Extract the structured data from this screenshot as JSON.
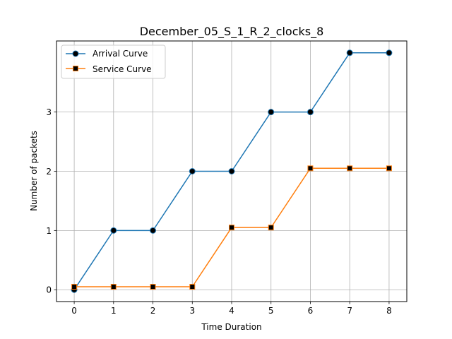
{
  "chart_data": {
    "type": "line",
    "title": "December_05_S_1_R_2_clocks_8",
    "xlabel": "Time Duration",
    "ylabel": "Number of packets",
    "x": [
      0,
      1,
      2,
      3,
      4,
      5,
      6,
      7,
      8
    ],
    "xlim": [
      -0.45,
      8.45
    ],
    "ylim": [
      -0.2,
      4.2
    ],
    "xticks": [
      "0",
      "1",
      "2",
      "3",
      "4",
      "5",
      "6",
      "7",
      "8"
    ],
    "yticks": [
      0,
      1,
      2,
      3
    ],
    "ytick_labels": [
      "0",
      "1",
      "2",
      "3"
    ],
    "grid": true,
    "legend_position": "upper-left",
    "series": [
      {
        "name": "Arrival Curve",
        "color": "#1f77b4",
        "marker": "circle",
        "values": [
          0,
          1,
          1,
          2,
          2,
          3,
          3,
          4,
          4
        ]
      },
      {
        "name": "Service Curve",
        "color": "#ff7f0e",
        "marker": "square",
        "values": [
          0.05,
          0.05,
          0.05,
          0.05,
          1.05,
          1.05,
          2.05,
          2.05,
          2.05
        ]
      }
    ]
  }
}
